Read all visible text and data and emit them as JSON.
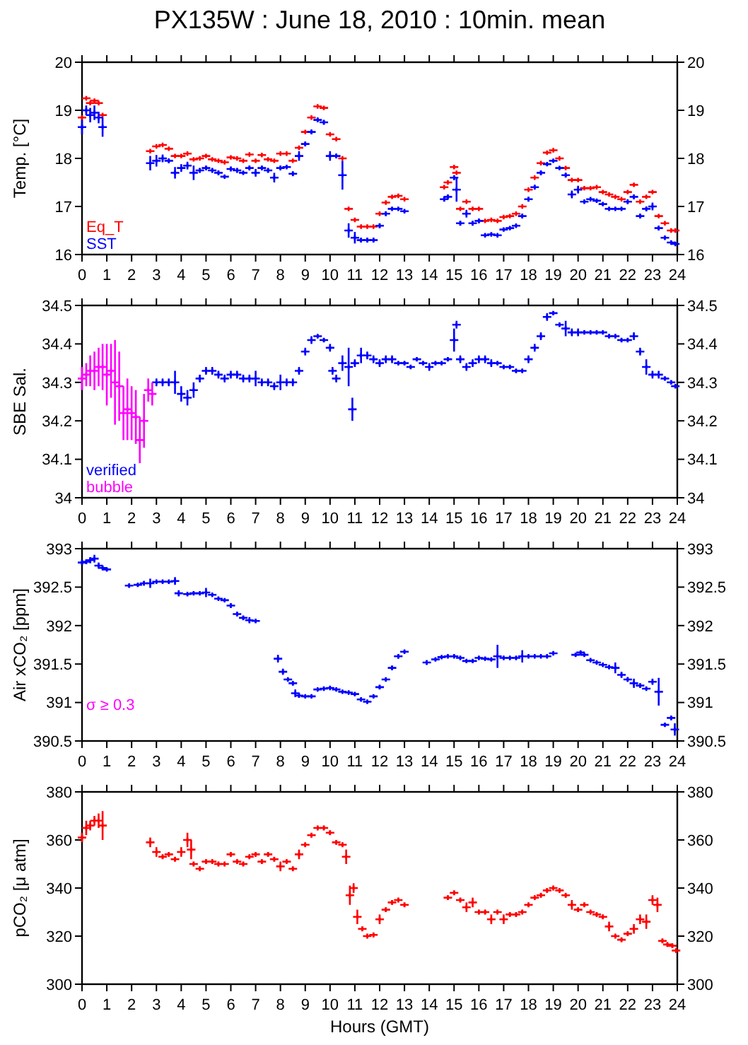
{
  "chart_data": [
    {
      "type": "scatter",
      "title": "PX135W : June 18, 2010 : 10min. mean",
      "ylabel": "Temp. [°C]",
      "xlim": [
        0,
        24
      ],
      "xticks": [
        0,
        1,
        2,
        3,
        4,
        5,
        6,
        7,
        8,
        9,
        10,
        11,
        12,
        13,
        14,
        15,
        16,
        17,
        18,
        19,
        20,
        21,
        22,
        23,
        24
      ],
      "ylim": [
        16,
        20
      ],
      "yticks": [
        16,
        17,
        18,
        19,
        20
      ],
      "y2lim": [
        16,
        20
      ],
      "y2ticks": [
        16,
        17,
        18,
        19,
        20
      ],
      "marker": "cross",
      "series": [
        {
          "name": "Eq_T",
          "color": "#ff0000",
          "x": [
            0,
            0.17,
            0.33,
            0.5,
            0.67,
            0.83,
            2.75,
            3,
            3.25,
            3.5,
            3.75,
            4,
            4.25,
            4.5,
            4.75,
            5,
            5.25,
            5.5,
            5.75,
            6,
            6.25,
            6.5,
            6.75,
            7,
            7.25,
            7.5,
            7.75,
            8,
            8.25,
            8.5,
            8.75,
            9,
            9.25,
            9.5,
            9.75,
            10,
            10.25,
            10.5,
            10.75,
            11,
            11.25,
            11.5,
            11.75,
            12,
            12.25,
            12.5,
            12.75,
            13,
            14.6,
            14.75,
            15,
            15.1,
            15.25,
            15.5,
            15.75,
            16,
            16.25,
            16.5,
            16.75,
            17,
            17.25,
            17.5,
            17.75,
            18,
            18.25,
            18.5,
            18.75,
            19,
            19.25,
            19.5,
            19.75,
            20,
            20.25,
            20.5,
            20.75,
            21,
            21.25,
            21.5,
            21.75,
            22,
            22.25,
            22.5,
            22.75,
            23,
            23.25,
            23.5,
            23.75,
            23.92
          ],
          "values": [
            18.85,
            19.25,
            19.15,
            19.2,
            19.15,
            18.9,
            18.15,
            18.25,
            18.28,
            18.2,
            18.05,
            18.05,
            18.1,
            17.98,
            18.0,
            18.05,
            17.98,
            17.95,
            17.92,
            18.02,
            18.0,
            17.95,
            18.08,
            17.95,
            18.07,
            17.98,
            17.95,
            18.1,
            18.1,
            17.95,
            18.22,
            18.55,
            18.85,
            19.08,
            19.05,
            18.5,
            18.4,
            18.0,
            16.95,
            16.72,
            16.58,
            16.58,
            16.58,
            16.85,
            17.08,
            17.2,
            17.22,
            17.15,
            17.4,
            17.5,
            17.82,
            17.7,
            16.95,
            17.1,
            16.95,
            16.95,
            16.7,
            16.72,
            16.7,
            16.78,
            16.8,
            16.85,
            17.0,
            17.35,
            17.6,
            17.9,
            18.12,
            18.17,
            18.0,
            17.8,
            17.55,
            17.55,
            17.38,
            17.38,
            17.4,
            17.3,
            17.25,
            17.2,
            17.15,
            17.3,
            17.45,
            17.1,
            17.2,
            17.3,
            16.8,
            16.65,
            16.5,
            16.5
          ]
        },
        {
          "name": "SST",
          "color": "#0000ff",
          "x": [
            0,
            0.17,
            0.33,
            0.5,
            0.67,
            0.83,
            2.75,
            3,
            3.25,
            3.5,
            3.75,
            4,
            4.25,
            4.5,
            4.75,
            5,
            5.25,
            5.5,
            5.75,
            6,
            6.25,
            6.5,
            6.75,
            7,
            7.25,
            7.5,
            7.75,
            8,
            8.25,
            8.5,
            8.75,
            9,
            9.25,
            9.5,
            9.75,
            10,
            10.25,
            10.5,
            10.75,
            11,
            11.25,
            11.5,
            11.75,
            12,
            12.25,
            12.5,
            12.75,
            13,
            14.6,
            14.75,
            15,
            15.1,
            15.25,
            15.5,
            15.75,
            16,
            16.25,
            16.5,
            16.75,
            17,
            17.25,
            17.5,
            17.75,
            18,
            18.25,
            18.5,
            18.75,
            19,
            19.25,
            19.5,
            19.75,
            20,
            20.25,
            20.5,
            20.75,
            21,
            21.25,
            21.5,
            21.75,
            22,
            22.25,
            22.5,
            22.75,
            23,
            23.25,
            23.5,
            23.75,
            23.92
          ],
          "values": [
            18.65,
            19.0,
            18.9,
            18.95,
            18.85,
            18.65,
            17.9,
            17.95,
            18.0,
            17.95,
            17.7,
            17.8,
            17.85,
            17.7,
            17.75,
            17.8,
            17.75,
            17.7,
            17.62,
            17.78,
            17.75,
            17.7,
            17.8,
            17.7,
            17.8,
            17.75,
            17.6,
            17.8,
            17.82,
            17.68,
            18.05,
            18.3,
            18.55,
            18.8,
            18.75,
            18.05,
            18.05,
            17.65,
            16.5,
            16.35,
            16.3,
            16.3,
            16.3,
            16.6,
            16.85,
            16.95,
            16.95,
            16.9,
            17.15,
            17.2,
            17.6,
            17.35,
            16.65,
            16.85,
            16.65,
            16.7,
            16.4,
            16.42,
            16.4,
            16.52,
            16.55,
            16.6,
            16.8,
            17.15,
            17.4,
            17.7,
            17.88,
            17.95,
            17.8,
            17.65,
            17.25,
            17.35,
            17.1,
            17.15,
            17.12,
            17.05,
            16.95,
            16.95,
            16.95,
            17.1,
            17.2,
            16.8,
            16.95,
            17.0,
            16.55,
            16.35,
            16.25,
            16.22
          ],
          "errors": [
            0.15,
            0.1,
            0.15,
            0.15,
            0.12,
            0.2,
            0.15,
            0.12,
            0.08,
            0.05,
            0.12,
            0.08,
            0.08,
            0.15,
            0.05,
            0.05,
            0.05,
            0.05,
            0.03,
            0.05,
            0.05,
            0.03,
            0.05,
            0.08,
            0.05,
            0.05,
            0.1,
            0.05,
            0.03,
            0.05,
            0.1,
            0.05,
            0.05,
            0.05,
            0.05,
            0.1,
            0.05,
            0.3,
            0.15,
            0.12,
            0.05,
            0.05,
            0.05,
            0.05,
            0.05,
            0.03,
            0.03,
            0.03,
            0.05,
            0.05,
            0.05,
            0.25,
            0.05,
            0.08,
            0.05,
            0.05,
            0.03,
            0.03,
            0.03,
            0.03,
            0.03,
            0.03,
            0.05,
            0.05,
            0.05,
            0.05,
            0.03,
            0.03,
            0.03,
            0.05,
            0.08,
            0.08,
            0.03,
            0.03,
            0.03,
            0.03,
            0.03,
            0.03,
            0.03,
            0.05,
            0.05,
            0.05,
            0.05,
            0.08,
            0.05,
            0.03,
            0.03,
            0.03
          ]
        }
      ]
    },
    {
      "type": "scatter",
      "ylabel": "SBE Sal.",
      "xlim": [
        0,
        24
      ],
      "xticks": [
        0,
        1,
        2,
        3,
        4,
        5,
        6,
        7,
        8,
        9,
        10,
        11,
        12,
        13,
        14,
        15,
        16,
        17,
        18,
        19,
        20,
        21,
        22,
        23,
        24
      ],
      "ylim": [
        34,
        34.5
      ],
      "yticks": [
        34,
        34.1,
        34.2,
        34.3,
        34.4,
        34.5
      ],
      "y2lim": [
        34,
        34.5
      ],
      "y2ticks": [
        34,
        34.1,
        34.2,
        34.3,
        34.4,
        34.5
      ],
      "marker": "cross",
      "series": [
        {
          "name": "verified",
          "color": "#0000ff",
          "x": [
            3,
            3.25,
            3.5,
            3.75,
            4,
            4.25,
            4.5,
            4.75,
            5,
            5.25,
            5.5,
            5.75,
            6,
            6.25,
            6.5,
            6.75,
            7,
            7.25,
            7.5,
            7.75,
            8,
            8.25,
            8.5,
            8.75,
            9,
            9.25,
            9.5,
            9.75,
            10,
            10.1,
            10.25,
            10.5,
            10.75,
            10.9,
            11,
            11.25,
            11.5,
            11.75,
            12,
            12.25,
            12.5,
            12.75,
            13,
            13.25,
            13.5,
            13.75,
            14,
            14.25,
            14.5,
            14.75,
            15,
            15.1,
            15.25,
            15.5,
            15.75,
            16,
            16.25,
            16.5,
            16.75,
            17,
            17.25,
            17.5,
            17.75,
            18,
            18.25,
            18.5,
            18.75,
            19,
            19.25,
            19.5,
            19.75,
            20,
            20.25,
            20.5,
            20.75,
            21,
            21.25,
            21.5,
            21.75,
            22,
            22.25,
            22.5,
            22.75,
            23,
            23.25,
            23.5,
            23.75,
            23.92
          ],
          "values": [
            34.3,
            34.3,
            34.3,
            34.3,
            34.27,
            34.26,
            34.28,
            34.31,
            34.33,
            34.33,
            34.32,
            34.31,
            34.32,
            34.32,
            34.31,
            34.31,
            34.31,
            34.3,
            34.3,
            34.29,
            34.3,
            34.3,
            34.3,
            34.33,
            34.38,
            34.41,
            34.42,
            34.41,
            34.39,
            34.33,
            34.31,
            34.35,
            34.34,
            34.23,
            34.35,
            34.37,
            34.37,
            34.36,
            34.35,
            34.36,
            34.36,
            34.35,
            34.35,
            34.34,
            34.36,
            34.35,
            34.34,
            34.35,
            34.35,
            34.36,
            34.41,
            34.45,
            34.36,
            34.34,
            34.35,
            34.36,
            34.36,
            34.35,
            34.35,
            34.34,
            34.34,
            34.33,
            34.33,
            34.36,
            34.39,
            34.42,
            34.47,
            34.48,
            34.45,
            34.44,
            34.43,
            34.43,
            34.43,
            34.43,
            34.43,
            34.43,
            34.42,
            34.42,
            34.41,
            34.41,
            34.42,
            34.38,
            34.34,
            34.32,
            34.32,
            34.31,
            34.3,
            34.29
          ],
          "errors": [
            0.01,
            0.01,
            0.01,
            0.03,
            0.02,
            0.02,
            0.02,
            0.01,
            0.01,
            0.01,
            0.01,
            0.01,
            0.01,
            0.01,
            0.01,
            0.01,
            0.02,
            0.01,
            0.01,
            0.01,
            0.02,
            0.01,
            0.01,
            0.01,
            0.01,
            0.01,
            0.005,
            0.005,
            0.01,
            0.01,
            0.01,
            0.02,
            0.05,
            0.03,
            0.01,
            0.02,
            0.01,
            0.01,
            0.01,
            0.01,
            0.01,
            0.005,
            0.005,
            0.005,
            0.005,
            0.005,
            0.01,
            0.005,
            0.005,
            0.005,
            0.03,
            0.01,
            0.01,
            0.01,
            0.01,
            0.01,
            0.01,
            0.01,
            0.005,
            0.005,
            0.005,
            0.005,
            0.005,
            0.01,
            0.01,
            0.01,
            0.01,
            0.005,
            0.005,
            0.02,
            0.01,
            0.01,
            0.005,
            0.005,
            0.005,
            0.005,
            0.005,
            0.005,
            0.005,
            0.005,
            0.01,
            0.01,
            0.02,
            0.01,
            0.01,
            0.005,
            0.005,
            0.005
          ]
        },
        {
          "name": "bubble",
          "color": "#ff00ff",
          "x": [
            0,
            0.17,
            0.33,
            0.5,
            0.67,
            0.83,
            1,
            1.17,
            1.33,
            1.5,
            1.67,
            1.83,
            2,
            2.17,
            2.33,
            2.5,
            2.67,
            2.83
          ],
          "values": [
            34.31,
            34.32,
            34.33,
            34.33,
            34.34,
            34.34,
            34.32,
            34.33,
            34.3,
            34.29,
            34.22,
            34.23,
            34.22,
            34.21,
            34.15,
            34.2,
            34.28,
            34.27
          ],
          "errors": [
            0.03,
            0.03,
            0.04,
            0.05,
            0.05,
            0.06,
            0.08,
            0.07,
            0.11,
            0.09,
            0.07,
            0.08,
            0.07,
            0.07,
            0.06,
            0.07,
            0.03,
            0.03
          ]
        }
      ]
    },
    {
      "type": "scatter",
      "ylabel": "Air xCO₂ [ppm]",
      "annotations": [
        "σ ≥ 0.3"
      ],
      "xlim": [
        0,
        24
      ],
      "xticks": [
        0,
        1,
        2,
        3,
        4,
        5,
        6,
        7,
        8,
        9,
        10,
        11,
        12,
        13,
        14,
        15,
        16,
        17,
        18,
        19,
        20,
        21,
        22,
        23,
        24
      ],
      "ylim": [
        390.5,
        393
      ],
      "yticks": [
        390.5,
        391,
        391.5,
        392,
        392.5,
        393
      ],
      "y2lim": [
        390.5,
        393
      ],
      "y2ticks": [
        390.5,
        391,
        391.5,
        392,
        392.5,
        393
      ],
      "marker": "cross",
      "color": "#0000ff",
      "x": [
        0,
        0.17,
        0.33,
        0.5,
        0.67,
        0.83,
        1,
        1.9,
        2.25,
        2.5,
        2.75,
        3,
        3.25,
        3.5,
        3.75,
        3.9,
        4.25,
        4.5,
        4.75,
        5,
        5.25,
        5.5,
        5.75,
        6,
        6.25,
        6.5,
        6.75,
        7,
        7.9,
        8.1,
        8.3,
        8.5,
        8.6,
        8.75,
        9,
        9.25,
        9.5,
        9.75,
        10,
        10.25,
        10.5,
        10.75,
        11,
        11.25,
        11.5,
        11.75,
        12,
        12.25,
        12.5,
        12.75,
        13,
        13.9,
        14.25,
        14.5,
        14.75,
        15,
        15.25,
        15.5,
        15.75,
        16,
        16.25,
        16.5,
        16.75,
        17,
        17.25,
        17.5,
        17.75,
        18,
        18.25,
        18.5,
        18.75,
        19,
        19.9,
        20.1,
        20.25,
        20.5,
        20.75,
        21,
        21.25,
        21.5,
        21.75,
        22,
        22.25,
        22.5,
        22.75,
        23,
        23.25,
        23.5,
        23.75,
        23.9
      ],
      "values": [
        392.82,
        392.83,
        392.85,
        392.87,
        392.78,
        392.75,
        392.73,
        392.52,
        392.53,
        392.55,
        392.55,
        392.57,
        392.57,
        392.57,
        392.58,
        392.42,
        392.41,
        392.42,
        392.42,
        392.43,
        392.4,
        392.35,
        392.33,
        392.26,
        392.15,
        392.1,
        392.07,
        392.06,
        391.57,
        391.4,
        391.3,
        391.25,
        391.12,
        391.09,
        391.08,
        391.08,
        391.17,
        391.18,
        391.19,
        391.17,
        391.14,
        391.13,
        391.11,
        391.04,
        391.01,
        391.08,
        391.2,
        391.3,
        391.45,
        391.6,
        391.66,
        391.52,
        391.56,
        391.59,
        391.6,
        391.6,
        391.58,
        391.54,
        391.54,
        391.58,
        391.57,
        391.56,
        391.6,
        391.58,
        391.58,
        391.58,
        391.6,
        391.6,
        391.6,
        391.6,
        391.6,
        391.64,
        391.62,
        391.65,
        391.62,
        391.55,
        391.52,
        391.49,
        391.46,
        391.45,
        391.36,
        391.3,
        391.25,
        391.22,
        391.18,
        391.27,
        391.14,
        390.71,
        390.8,
        390.65
      ],
      "errors": [
        0.03,
        0.03,
        0.04,
        0.05,
        0.04,
        0.03,
        0.02,
        0.02,
        0.02,
        0.03,
        0.06,
        0.02,
        0.02,
        0.02,
        0.05,
        0.04,
        0.02,
        0.02,
        0.02,
        0.06,
        0.02,
        0.02,
        0.02,
        0.03,
        0.03,
        0.03,
        0.04,
        0.02,
        0.05,
        0.04,
        0.02,
        0.03,
        0.05,
        0.03,
        0.02,
        0.02,
        0.02,
        0.02,
        0.02,
        0.02,
        0.02,
        0.02,
        0.02,
        0.02,
        0.02,
        0.02,
        0.03,
        0.02,
        0.03,
        0.03,
        0.02,
        0.03,
        0.02,
        0.02,
        0.02,
        0.02,
        0.02,
        0.02,
        0.02,
        0.02,
        0.02,
        0.02,
        0.15,
        0.02,
        0.02,
        0.02,
        0.08,
        0.02,
        0.02,
        0.02,
        0.02,
        0.02,
        0.02,
        0.02,
        0.02,
        0.02,
        0.02,
        0.02,
        0.02,
        0.07,
        0.04,
        0.03,
        0.06,
        0.03,
        0.02,
        0.04,
        0.18,
        0.02,
        0.03,
        0.08
      ]
    },
    {
      "type": "scatter",
      "ylabel": "pCO₂ [μ atm]",
      "xlabel": "Hours (GMT)",
      "xlim": [
        0,
        24
      ],
      "xticks": [
        0,
        1,
        2,
        3,
        4,
        5,
        6,
        7,
        8,
        9,
        10,
        11,
        12,
        13,
        14,
        15,
        16,
        17,
        18,
        19,
        20,
        21,
        22,
        23,
        24
      ],
      "ylim": [
        300,
        380
      ],
      "yticks": [
        300,
        320,
        340,
        360,
        380
      ],
      "y2lim": [
        300,
        380
      ],
      "y2ticks": [
        300,
        320,
        340,
        360,
        380
      ],
      "marker": "cross",
      "color": "#ff0000",
      "x": [
        0,
        0.17,
        0.33,
        0.5,
        0.67,
        0.83,
        2.75,
        3,
        3.25,
        3.5,
        3.75,
        4,
        4.25,
        4.4,
        4.5,
        4.75,
        5,
        5.25,
        5.5,
        5.75,
        6,
        6.25,
        6.5,
        6.75,
        7,
        7.25,
        7.5,
        7.75,
        8,
        8.25,
        8.5,
        8.75,
        9,
        9.25,
        9.5,
        9.75,
        10,
        10.25,
        10.5,
        10.65,
        10.8,
        10.95,
        11.1,
        11.3,
        11.5,
        11.75,
        12,
        12.25,
        12.5,
        12.75,
        13,
        14.75,
        15,
        15.25,
        15.5,
        15.75,
        16,
        16.25,
        16.5,
        16.75,
        17,
        17.25,
        17.5,
        17.75,
        18,
        18.25,
        18.5,
        18.75,
        19,
        19.25,
        19.5,
        19.75,
        20,
        20.25,
        20.5,
        20.75,
        21,
        21.25,
        21.5,
        21.75,
        22,
        22.25,
        22.5,
        22.75,
        23,
        23.2,
        23.4,
        23.6,
        23.8,
        23.95
      ],
      "values": [
        361,
        365,
        366,
        368,
        368,
        366,
        359,
        355,
        353,
        354,
        352,
        355,
        360,
        356,
        350,
        348,
        351,
        351,
        350,
        350,
        354,
        351,
        350,
        353,
        354,
        351,
        354,
        352,
        349,
        351,
        348,
        354,
        358,
        362,
        365,
        365,
        363,
        359,
        358,
        353,
        337,
        340,
        328,
        323,
        320,
        320.5,
        327,
        331,
        334,
        335,
        333,
        336,
        338,
        335,
        332,
        334,
        330,
        330,
        327,
        330,
        327,
        329,
        329,
        330,
        333,
        336,
        337,
        339,
        340,
        339,
        337,
        333,
        331,
        333,
        330,
        329,
        328,
        324,
        320,
        318.5,
        321,
        323,
        327,
        326,
        335,
        333,
        318,
        316.5,
        316,
        314
      ],
      "errors": [
        2,
        3,
        2,
        2,
        3,
        6,
        2,
        2,
        1,
        1,
        1,
        2,
        3,
        4,
        1,
        1,
        1,
        1,
        1,
        1,
        1,
        1,
        1,
        1,
        1,
        1,
        1,
        1,
        2,
        1,
        1,
        2,
        1,
        1,
        1,
        1,
        1,
        1,
        1,
        3,
        4,
        2,
        3,
        1,
        1,
        1,
        2,
        1,
        1,
        1,
        1,
        1,
        1,
        1,
        2,
        2,
        1,
        1,
        2,
        1,
        2,
        1,
        1,
        1,
        1,
        1,
        1,
        1,
        1,
        1,
        1,
        2,
        1,
        1,
        1,
        1,
        1,
        2,
        1,
        1,
        1,
        2,
        2,
        3,
        2,
        3,
        1,
        1,
        1,
        1
      ]
    }
  ]
}
